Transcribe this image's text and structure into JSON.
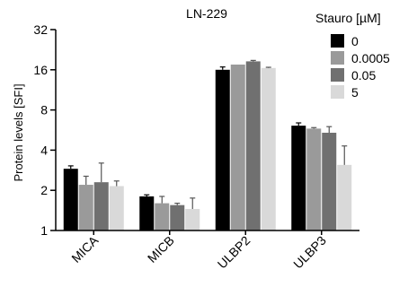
{
  "chart_data": {
    "type": "bar",
    "title": "LN-229",
    "ylabel": "Protein levels [SFI]",
    "xlabel": "",
    "y_scale": "log2",
    "ylim": [
      1,
      32
    ],
    "y_ticks": [
      1,
      2,
      4,
      8,
      16,
      32
    ],
    "categories": [
      "MICA",
      "MICB",
      "ULBP2",
      "ULBP3"
    ],
    "legend_title": "Stauro [µM]",
    "legend_position": "top-right",
    "grid": false,
    "series": [
      {
        "name": "0",
        "color": "#000000",
        "values": [
          2.9,
          1.8,
          16.0,
          6.1
        ],
        "errors": [
          0.15,
          0.05,
          0.8,
          0.3
        ]
      },
      {
        "name": "0.0005",
        "color": "#9a9a9a",
        "values": [
          2.2,
          1.6,
          17.5,
          5.8
        ],
        "errors": [
          0.35,
          0.2,
          0.0,
          0.1
        ]
      },
      {
        "name": "0.05",
        "color": "#707070",
        "values": [
          2.3,
          1.55,
          18.5,
          5.4
        ],
        "errors": [
          0.9,
          0.05,
          0.3,
          0.6
        ]
      },
      {
        "name": "5",
        "color": "#d9d9d9",
        "values": [
          2.15,
          1.45,
          16.5,
          3.1
        ],
        "errors": [
          0.2,
          0.3,
          0.2,
          1.2
        ]
      }
    ]
  }
}
